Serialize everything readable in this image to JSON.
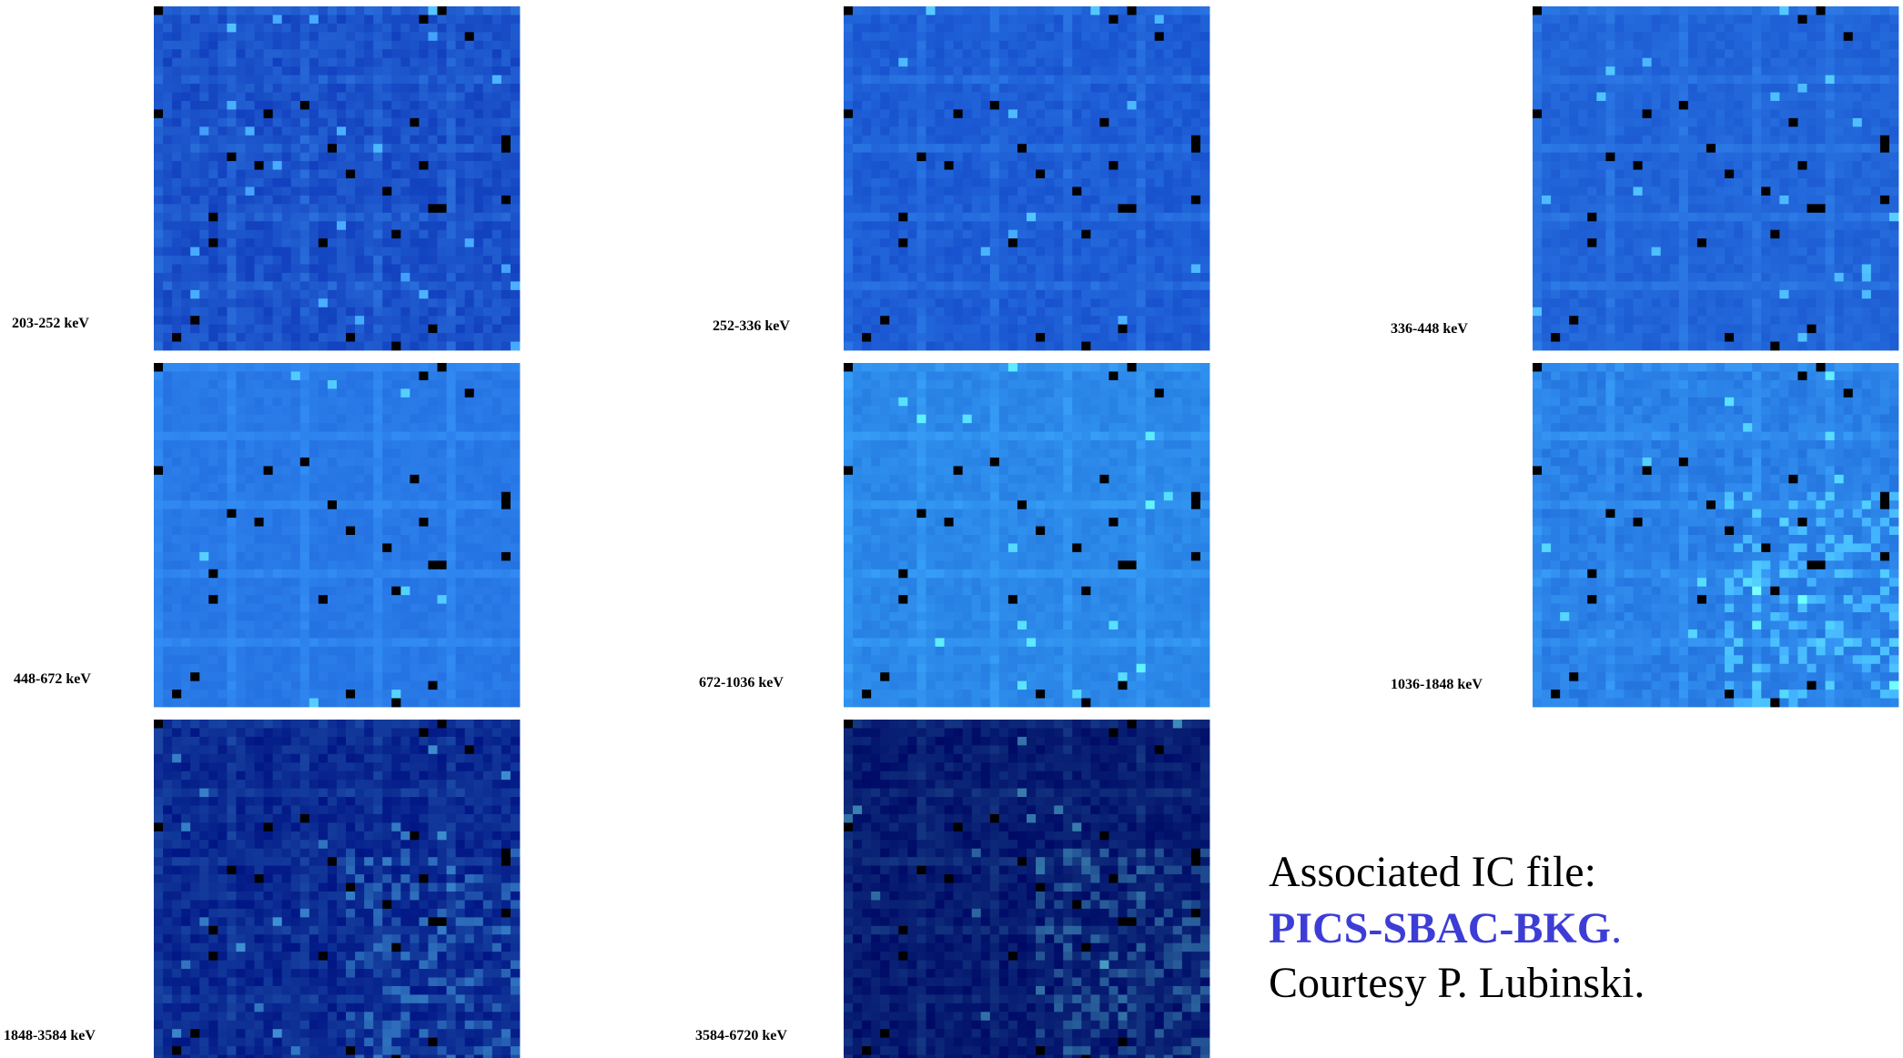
{
  "panels": [
    {
      "label": "203-252 keV"
    },
    {
      "label": "252-336 keV"
    },
    {
      "label": "336-448 keV"
    },
    {
      "label": "448-672 keV"
    },
    {
      "label": "672-1036 keV"
    },
    {
      "label": "1036-1848 keV"
    },
    {
      "label": "1848-3584 keV"
    },
    {
      "label": "3584-6720 keV"
    }
  ],
  "caption": {
    "line1": "Associated IC file:",
    "file": "PICS-SBAC-BKG",
    "period": ".",
    "line3": "Courtesy P. Lubinski."
  }
}
